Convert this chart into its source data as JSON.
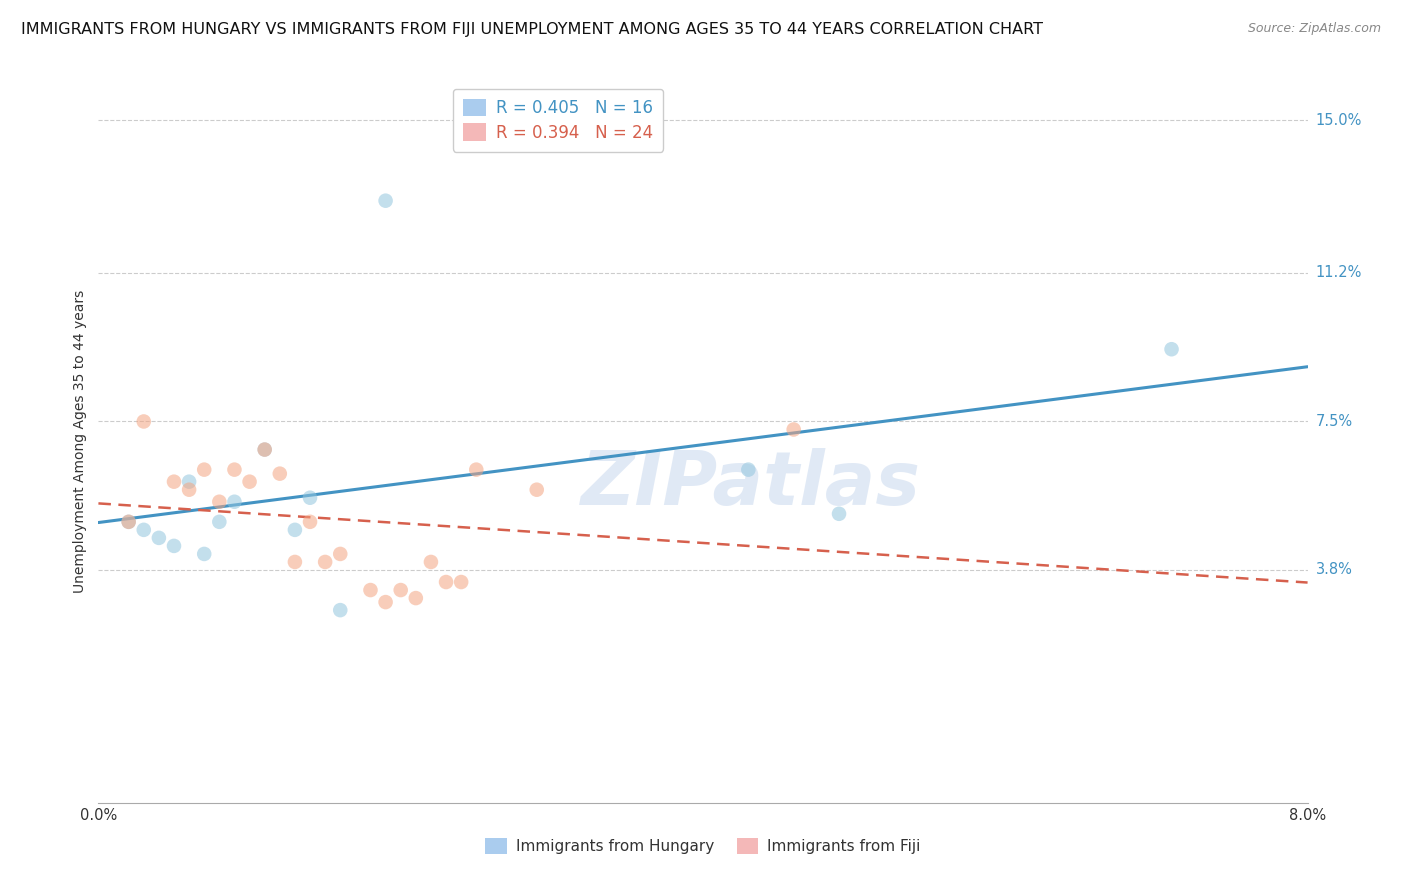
{
  "title": "IMMIGRANTS FROM HUNGARY VS IMMIGRANTS FROM FIJI UNEMPLOYMENT AMONG AGES 35 TO 44 YEARS CORRELATION CHART",
  "source": "Source: ZipAtlas.com",
  "ylabel": "Unemployment Among Ages 35 to 44 years",
  "xlim": [
    0.0,
    0.08
  ],
  "ylim": [
    -0.02,
    0.16
  ],
  "right_ytick_values": [
    0.038,
    0.075,
    0.112,
    0.15
  ],
  "right_ytick_labels": [
    "3.8%",
    "7.5%",
    "11.2%",
    "15.0%"
  ],
  "watermark": "ZIPatlas",
  "hungary_R": 0.405,
  "hungary_N": 16,
  "fiji_R": 0.394,
  "fiji_N": 24,
  "hungary_color": "#92c5de",
  "fiji_color": "#f4a582",
  "hungary_line_color": "#4393c3",
  "fiji_line_color": "#d6604d",
  "hungary_x": [
    0.002,
    0.003,
    0.004,
    0.005,
    0.006,
    0.007,
    0.008,
    0.009,
    0.011,
    0.013,
    0.014,
    0.016,
    0.019,
    0.043,
    0.049,
    0.071
  ],
  "hungary_y": [
    0.05,
    0.048,
    0.046,
    0.044,
    0.06,
    0.042,
    0.05,
    0.055,
    0.068,
    0.048,
    0.056,
    0.028,
    0.13,
    0.063,
    0.052,
    0.093
  ],
  "fiji_x": [
    0.002,
    0.003,
    0.005,
    0.006,
    0.007,
    0.008,
    0.009,
    0.01,
    0.011,
    0.012,
    0.013,
    0.014,
    0.015,
    0.016,
    0.018,
    0.019,
    0.02,
    0.021,
    0.022,
    0.023,
    0.024,
    0.025,
    0.029,
    0.046
  ],
  "fiji_y": [
    0.05,
    0.075,
    0.06,
    0.058,
    0.063,
    0.055,
    0.063,
    0.06,
    0.068,
    0.062,
    0.04,
    0.05,
    0.04,
    0.042,
    0.033,
    0.03,
    0.033,
    0.031,
    0.04,
    0.035,
    0.035,
    0.063,
    0.058,
    0.073
  ],
  "background_color": "#ffffff",
  "grid_color": "#cccccc",
  "title_fontsize": 11.5,
  "axis_fontsize": 10,
  "tick_fontsize": 10.5,
  "marker_size": 110,
  "marker_alpha": 0.55,
  "legend_label_hungary": "Immigrants from Hungary",
  "legend_label_fiji": "Immigrants from Fiji"
}
